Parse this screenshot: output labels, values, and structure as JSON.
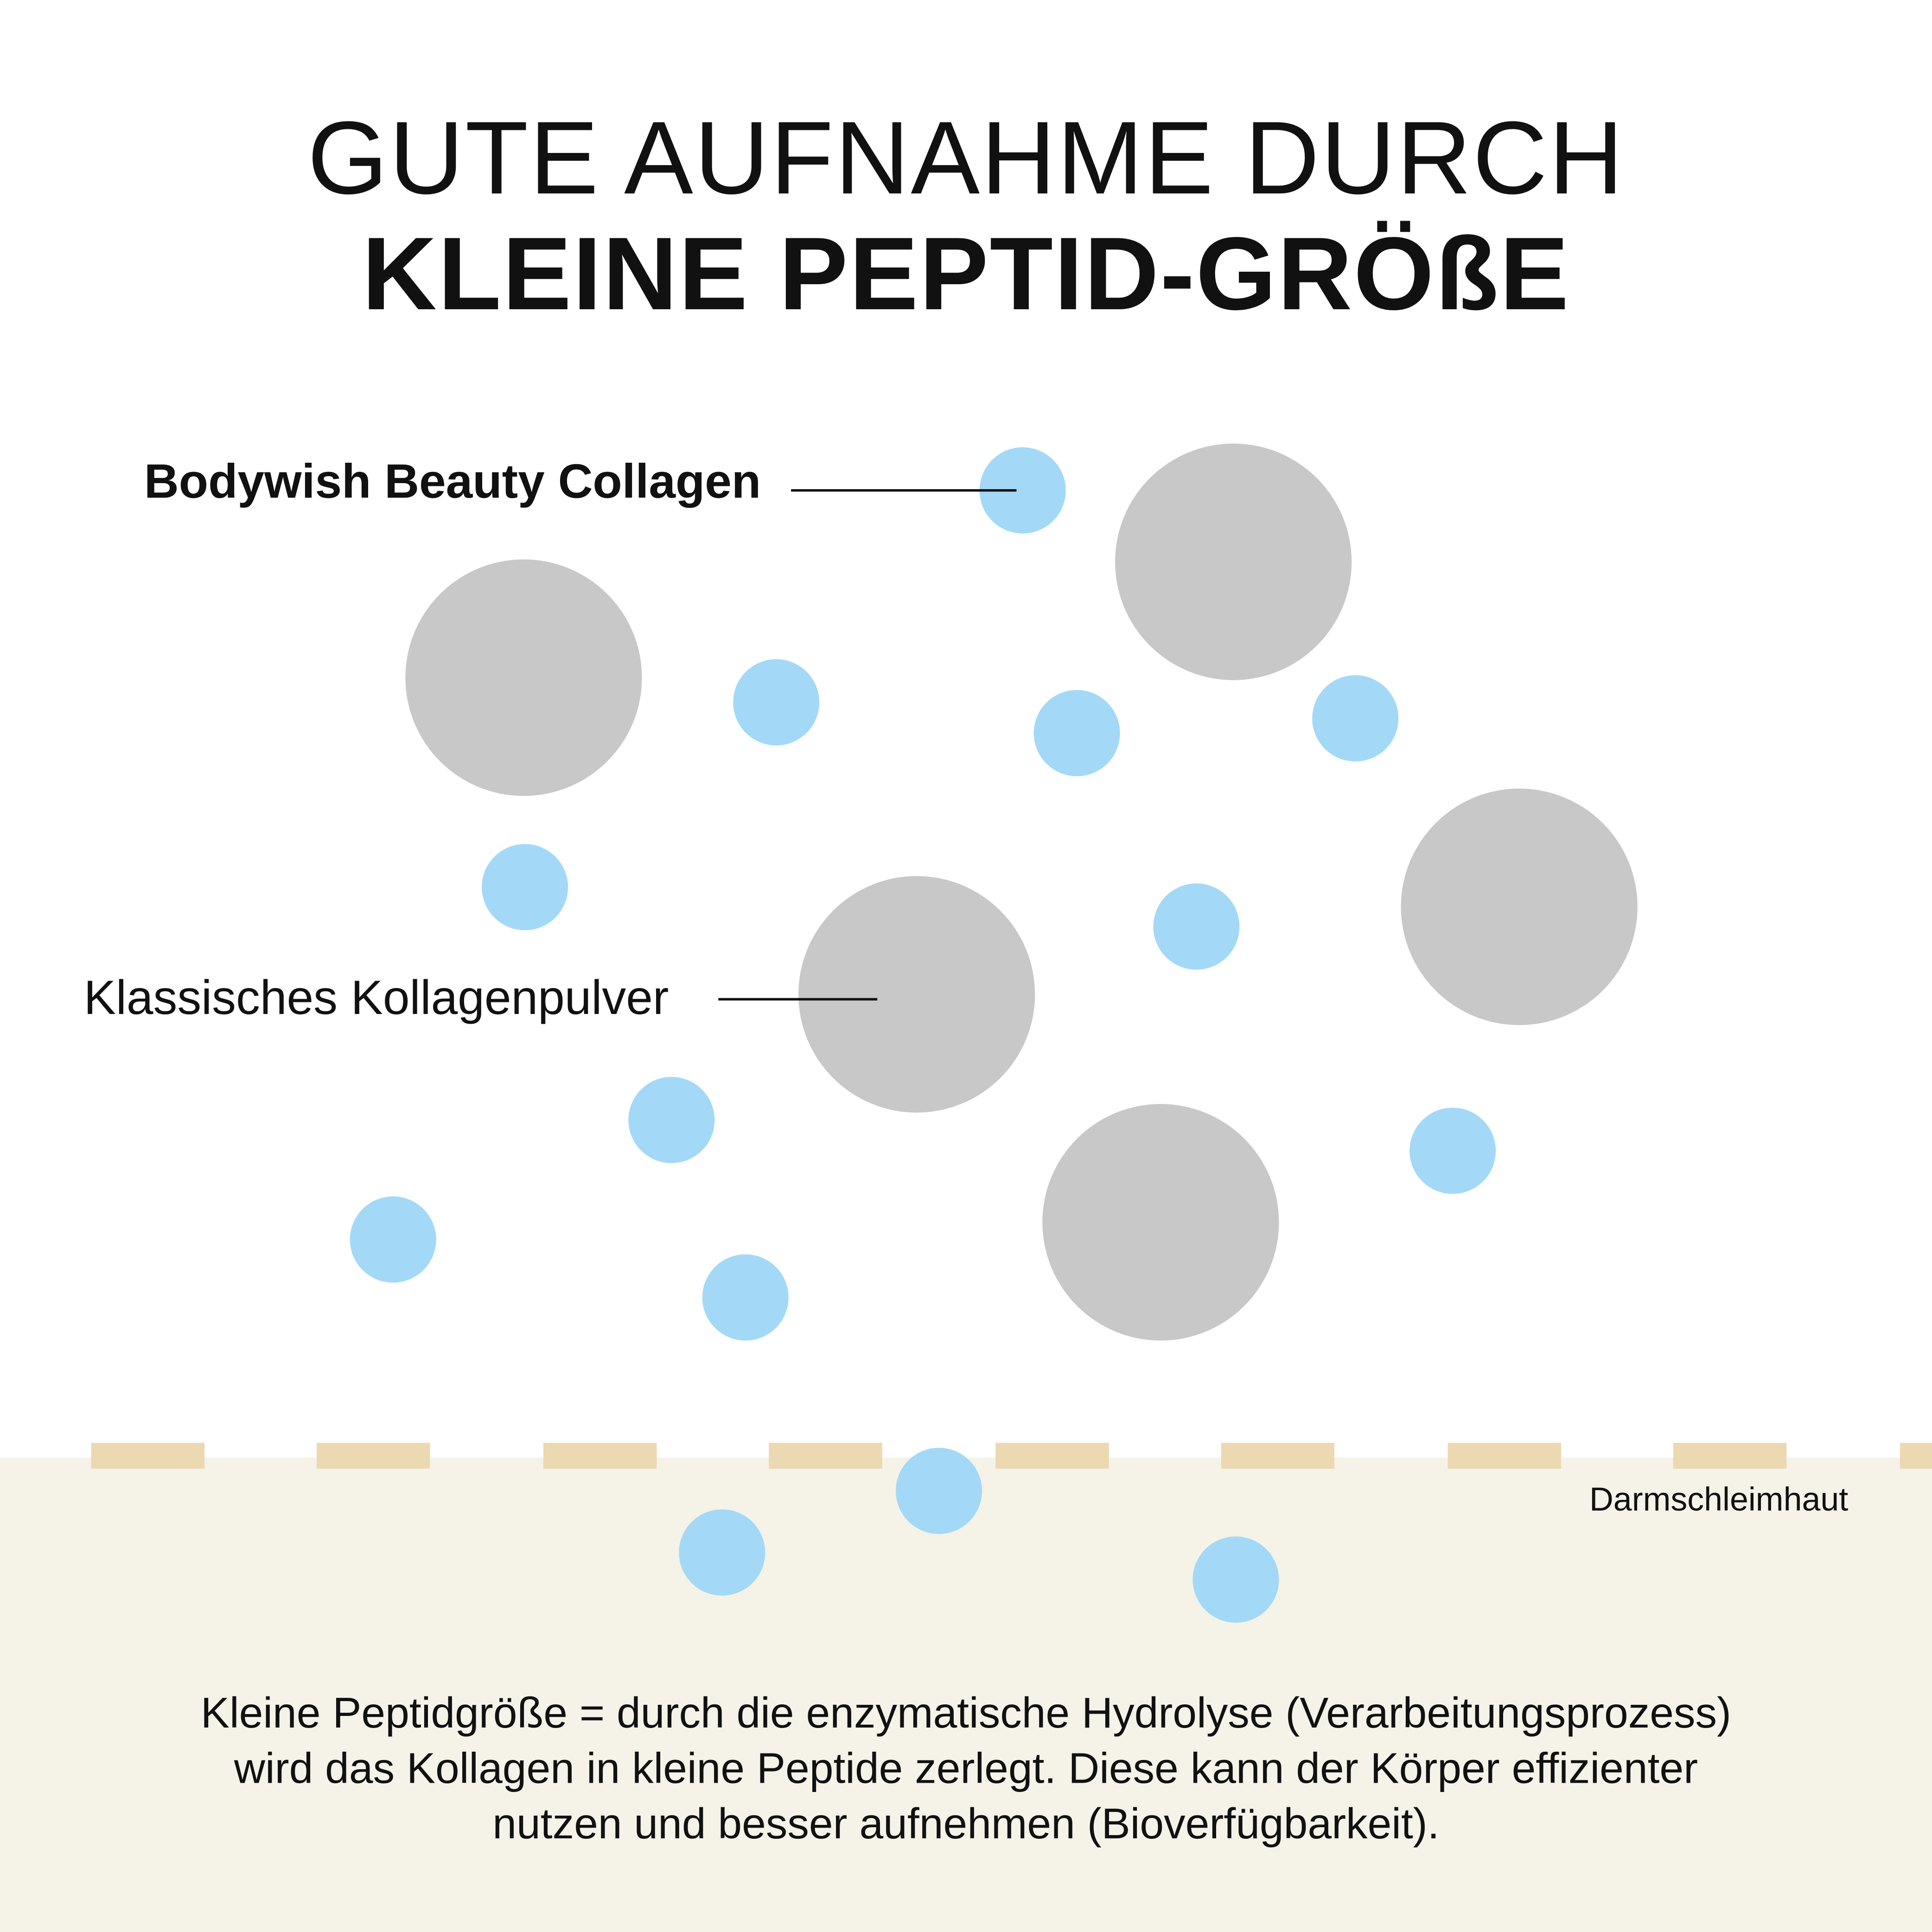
{
  "title": {
    "line1": "GUTE AUFNAHME DURCH",
    "line2": "KLEINE PEPTID-GRÖßE"
  },
  "labels": {
    "small_peptides": "Bodywish Beauty Collagen",
    "large_peptides": "Klassisches Kollagenpulver",
    "membrane": "Darmschleimhaut"
  },
  "description": [
    "Kleine Peptidgröße = durch die enzymatische Hydrolyse (Verarbeitungsprozess)",
    "wird das Kollagen in kleine Peptide zerlegt. Diese kann der Körper effizienter",
    "nutzen und besser aufnehmen (Bioverfügbarkeit)."
  ],
  "colors": {
    "small_peptide": "#a3d9f7",
    "large_peptide": "#c8c8c8",
    "membrane_dash": "#ecd9b1",
    "intestine_bg": "#f5f2e8",
    "text": "#111111"
  }
}
